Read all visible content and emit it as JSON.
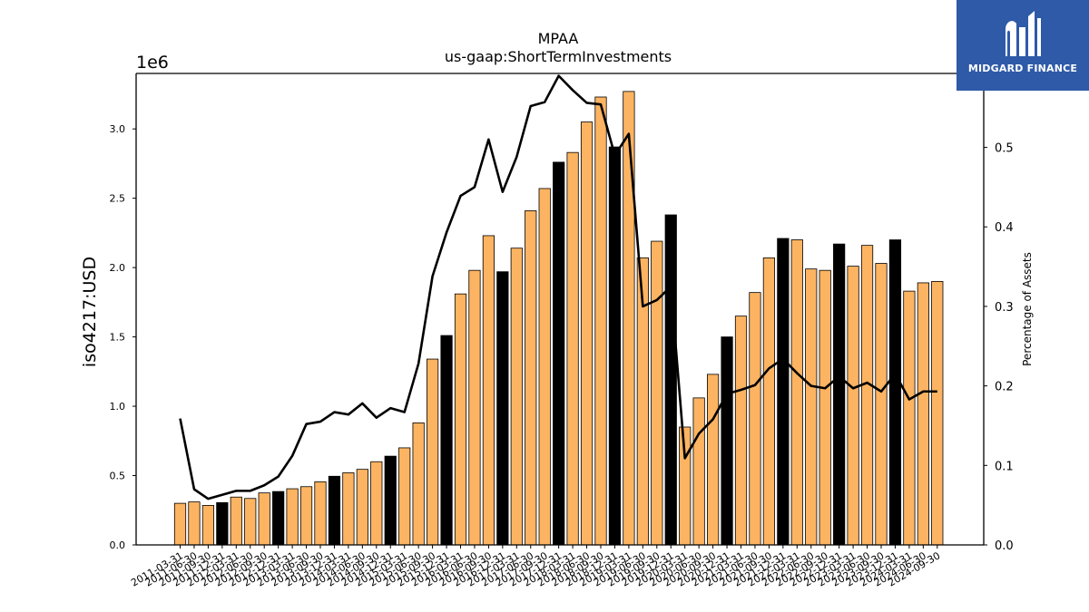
{
  "title": "MPAA",
  "subtitle": "us-gaap:ShortTermInvestments",
  "logo": {
    "text": "MIDGARD FINANCE",
    "bg_color": "#2e5aa8"
  },
  "colors": {
    "bar": "#fdb462",
    "bar_highlight": "#000000",
    "line": "#000000",
    "edge": "#000000"
  },
  "chart_data": {
    "type": "bar",
    "title": "MPAA",
    "subtitle": "us-gaap:ShortTermInvestments",
    "ylabel": "iso4217:USD",
    "y_offset_label": "1e6",
    "y2label": "Percentage of Assets",
    "ylim": [
      0,
      3400000
    ],
    "y2lim": [
      0,
      0.593
    ],
    "yticks": [
      0.0,
      0.5,
      1.0,
      1.5,
      2.0,
      2.5,
      3.0
    ],
    "y2ticks": [
      0.0,
      0.1,
      0.2,
      0.3,
      0.4,
      0.5
    ],
    "grid": false,
    "categories": [
      "2011-03-31",
      "2011-06-30",
      "2011-09-30",
      "2011-12-31",
      "2012-03-31",
      "2012-06-30",
      "2012-09-30",
      "2012-12-31",
      "2013-03-31",
      "2013-06-30",
      "2013-09-30",
      "2013-12-31",
      "2014-03-31",
      "2014-06-30",
      "2014-09-30",
      "2014-12-31",
      "2015-03-31",
      "2015-06-30",
      "2015-09-30",
      "2015-12-31",
      "2016-03-31",
      "2016-06-30",
      "2016-09-30",
      "2016-12-31",
      "2017-03-31",
      "2017-06-30",
      "2017-09-30",
      "2017-12-31",
      "2018-03-31",
      "2018-06-30",
      "2018-09-30",
      "2018-12-31",
      "2019-03-31",
      "2019-06-30",
      "2019-09-30",
      "2019-12-31",
      "2020-03-31",
      "2020-06-30",
      "2020-09-30",
      "2020-12-31",
      "2021-03-31",
      "2021-06-30",
      "2021-09-30",
      "2021-12-31",
      "2022-03-31",
      "2022-06-30",
      "2022-09-30",
      "2022-12-31",
      "2023-03-31",
      "2023-06-30",
      "2023-09-30",
      "2023-12-31",
      "2024-03-31",
      "2024-06-30",
      "2024-09-30"
    ],
    "series": [
      {
        "type": "bar",
        "values": [
          300000,
          310000,
          285000,
          305000,
          345000,
          335000,
          375000,
          385000,
          405000,
          420000,
          455000,
          495000,
          520000,
          545000,
          600000,
          640000,
          700000,
          880000,
          1340000,
          1510000,
          1810000,
          1980000,
          2230000,
          1970000,
          2140000,
          2410000,
          2570000,
          2760000,
          2830000,
          3050000,
          3230000,
          2870000,
          3270000,
          2070000,
          2190000,
          2380000,
          850000,
          1060000,
          1230000,
          1500000,
          1650000,
          1820000,
          2070000,
          2210000,
          2200000,
          1990000,
          1980000,
          2170000,
          2010000,
          2160000,
          2030000,
          2200000,
          1830000,
          1890000,
          1900000
        ],
        "highlight": [
          3,
          7,
          11,
          15,
          19,
          23,
          27,
          31,
          35,
          39,
          43,
          47,
          51
        ]
      },
      {
        "type": "line",
        "axis": "right",
        "values": [
          0.159,
          0.07,
          0.058,
          0.063,
          0.068,
          0.068,
          0.075,
          0.086,
          0.112,
          0.152,
          0.155,
          0.167,
          0.164,
          0.178,
          0.16,
          0.172,
          0.167,
          0.228,
          0.338,
          0.393,
          0.439,
          0.45,
          0.51,
          0.444,
          0.488,
          0.552,
          0.557,
          0.59,
          0.572,
          0.556,
          0.554,
          0.49,
          0.517,
          0.3,
          0.308,
          0.325,
          0.109,
          0.14,
          0.158,
          0.19,
          0.195,
          0.201,
          0.222,
          0.234,
          0.216,
          0.2,
          0.197,
          0.212,
          0.197,
          0.204,
          0.193,
          0.215,
          0.183,
          0.193,
          0.193
        ]
      }
    ]
  }
}
